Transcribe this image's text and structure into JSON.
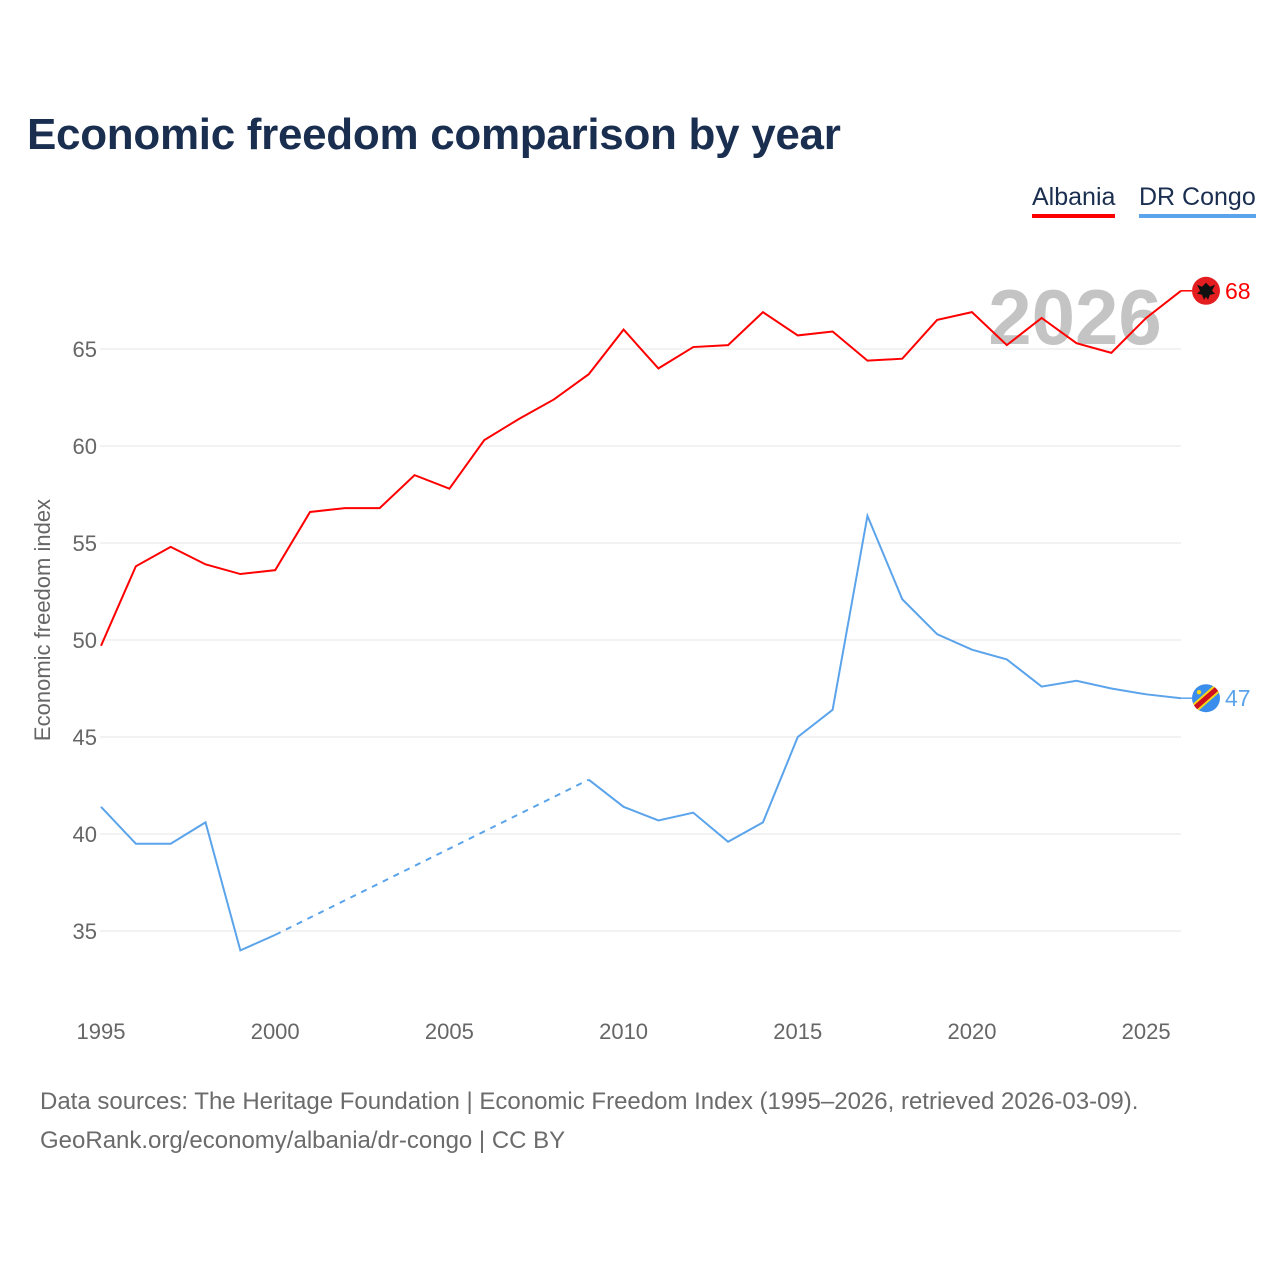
{
  "title": "Economic freedom comparison by year",
  "footer": {
    "line1": "Data sources: The Heritage Foundation | Economic Freedom Index (1995–2026, retrieved 2026-03-09).",
    "line2": "GeoRank.org/economy/albania/dr-congo | CC BY"
  },
  "chart_data": {
    "type": "line",
    "title": "Economic freedom comparison by year",
    "xlabel": "",
    "ylabel": "Economic freedom index",
    "xlim": [
      1995,
      2026
    ],
    "ylim": [
      32,
      70
    ],
    "xticks": [
      1995,
      2000,
      2005,
      2010,
      2015,
      2020,
      2025
    ],
    "yticks": [
      35,
      40,
      45,
      50,
      55,
      60,
      65
    ],
    "grid": true,
    "legend": "top-right",
    "watermark_year": "2026",
    "x": [
      1995,
      1996,
      1997,
      1998,
      1999,
      2000,
      2001,
      2002,
      2003,
      2004,
      2005,
      2006,
      2007,
      2008,
      2009,
      2010,
      2011,
      2012,
      2013,
      2014,
      2015,
      2016,
      2017,
      2018,
      2019,
      2020,
      2021,
      2022,
      2023,
      2024,
      2025,
      2026
    ],
    "series": [
      {
        "name": "Albania",
        "color": "#ff0000",
        "end_label": "68",
        "flag": "albania-flag",
        "values": [
          49.7,
          53.8,
          54.8,
          53.9,
          53.4,
          53.6,
          56.6,
          56.8,
          56.8,
          58.5,
          57.8,
          60.3,
          61.4,
          62.4,
          63.7,
          66.0,
          64.0,
          65.1,
          65.2,
          66.9,
          65.7,
          65.9,
          64.4,
          64.5,
          66.5,
          66.9,
          65.2,
          66.6,
          65.3,
          64.8,
          66.6,
          68.0
        ]
      },
      {
        "name": "DR Congo",
        "color": "#5ba4eb",
        "end_label": "47",
        "flag": "dr-congo-flag",
        "values": [
          41.4,
          39.5,
          39.5,
          40.6,
          34.0,
          34.8,
          null,
          null,
          null,
          null,
          null,
          null,
          null,
          null,
          42.8,
          41.4,
          40.7,
          41.1,
          39.6,
          40.6,
          45.0,
          46.4,
          56.4,
          52.1,
          50.3,
          49.5,
          49.0,
          47.6,
          47.9,
          47.5,
          47.2,
          47.0
        ]
      }
    ]
  }
}
